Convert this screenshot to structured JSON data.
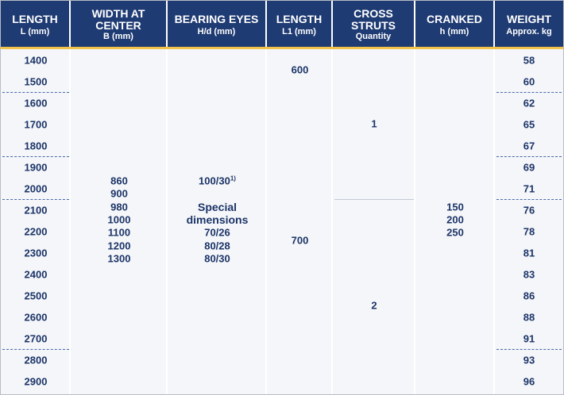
{
  "header": [
    {
      "title": [
        "LENGTH"
      ],
      "unit": "L (mm)"
    },
    {
      "title": [
        "WIDTH AT",
        "CENTER"
      ],
      "unit": "B (mm)"
    },
    {
      "title": [
        "BEARING EYES"
      ],
      "unit": "H/d (mm)"
    },
    {
      "title": [
        "LENGTH"
      ],
      "unit": "L1 (mm)"
    },
    {
      "title": [
        "CROSS",
        "STRUTS"
      ],
      "unit": "Quantity"
    },
    {
      "title": [
        "CRANKED"
      ],
      "unit": "h (mm)"
    },
    {
      "title": [
        "WEIGHT"
      ],
      "unit": "Approx. kg"
    }
  ],
  "lengths": [
    1400,
    1500,
    1600,
    1700,
    1800,
    1900,
    2000,
    2100,
    2200,
    2300,
    2400,
    2500,
    2600,
    2700,
    2800,
    2900
  ],
  "widths": [
    860,
    900,
    980,
    1000,
    1100,
    1200,
    1300
  ],
  "bearing_eyes": {
    "standard": "100/30",
    "note": "1)",
    "special": [
      "Special",
      "dimensions"
    ],
    "values": [
      "70/26",
      "80/28",
      "80/30"
    ]
  },
  "l1": [
    600,
    700
  ],
  "cross_struts": [
    1,
    2
  ],
  "cranked": [
    150,
    200,
    250
  ],
  "weights": [
    58,
    60,
    62,
    65,
    67,
    69,
    71,
    76,
    78,
    81,
    83,
    86,
    88,
    91,
    93,
    96
  ]
}
